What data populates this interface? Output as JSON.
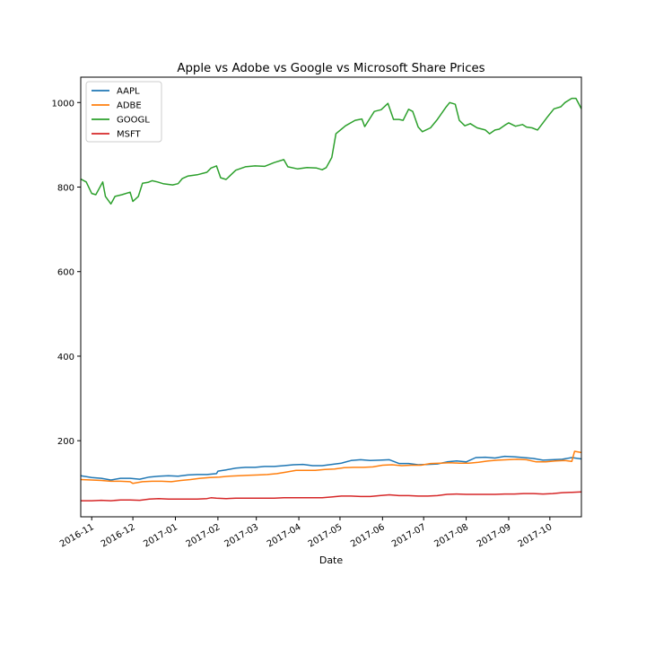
{
  "chart_data": {
    "type": "line",
    "title": "Apple vs Adobe vs Google vs Microsoft Share Prices",
    "xlabel": "Date",
    "ylabel": "",
    "xlim": [
      "2016-10-24",
      "2017-10-24"
    ],
    "ylim": [
      20,
      1060
    ],
    "x_ticks": [
      "2016-11",
      "2016-12",
      "2017-01",
      "2017-02",
      "2017-03",
      "2017-04",
      "2017-05",
      "2017-06",
      "2017-07",
      "2017-08",
      "2017-09",
      "2017-10"
    ],
    "y_ticks": [
      200,
      400,
      600,
      800,
      1000
    ],
    "grid": false,
    "legend": "top-left",
    "series": [
      {
        "name": "AAPL",
        "color": "#1f77b4",
        "points": [
          [
            "2016-10-24",
            117
          ],
          [
            "2016-11-01",
            113
          ],
          [
            "2016-11-08",
            111
          ],
          [
            "2016-11-15",
            107
          ],
          [
            "2016-11-22",
            111
          ],
          [
            "2016-11-29",
            111
          ],
          [
            "2016-12-06",
            109
          ],
          [
            "2016-12-13",
            114
          ],
          [
            "2016-12-20",
            116
          ],
          [
            "2016-12-27",
            117
          ],
          [
            "2017-01-03",
            116
          ],
          [
            "2017-01-10",
            119
          ],
          [
            "2017-01-17",
            120
          ],
          [
            "2017-01-24",
            120
          ],
          [
            "2017-01-31",
            122
          ],
          [
            "2017-02-01",
            128
          ],
          [
            "2017-02-07",
            131
          ],
          [
            "2017-02-14",
            135
          ],
          [
            "2017-02-21",
            137
          ],
          [
            "2017-02-28",
            137
          ],
          [
            "2017-03-07",
            139
          ],
          [
            "2017-03-14",
            139
          ],
          [
            "2017-03-21",
            141
          ],
          [
            "2017-03-28",
            143
          ],
          [
            "2017-04-04",
            144
          ],
          [
            "2017-04-11",
            141
          ],
          [
            "2017-04-18",
            141
          ],
          [
            "2017-04-25",
            144
          ],
          [
            "2017-05-02",
            147
          ],
          [
            "2017-05-09",
            153
          ],
          [
            "2017-05-16",
            155
          ],
          [
            "2017-05-23",
            153
          ],
          [
            "2017-05-30",
            154
          ],
          [
            "2017-06-06",
            155
          ],
          [
            "2017-06-13",
            146
          ],
          [
            "2017-06-20",
            146
          ],
          [
            "2017-06-27",
            143
          ],
          [
            "2017-07-04",
            144
          ],
          [
            "2017-07-11",
            145
          ],
          [
            "2017-07-18",
            150
          ],
          [
            "2017-07-25",
            152
          ],
          [
            "2017-08-01",
            150
          ],
          [
            "2017-08-08",
            160
          ],
          [
            "2017-08-15",
            161
          ],
          [
            "2017-08-22",
            159
          ],
          [
            "2017-08-29",
            163
          ],
          [
            "2017-09-05",
            162
          ],
          [
            "2017-09-12",
            160
          ],
          [
            "2017-09-19",
            158
          ],
          [
            "2017-09-26",
            154
          ],
          [
            "2017-10-03",
            155
          ],
          [
            "2017-10-10",
            156
          ],
          [
            "2017-10-17",
            160
          ],
          [
            "2017-10-24",
            157
          ]
        ]
      },
      {
        "name": "ADBE",
        "color": "#ff7f0e",
        "points": [
          [
            "2016-10-24",
            108
          ],
          [
            "2016-11-01",
            107
          ],
          [
            "2016-11-08",
            106
          ],
          [
            "2016-11-15",
            104
          ],
          [
            "2016-11-22",
            104
          ],
          [
            "2016-11-29",
            103
          ],
          [
            "2016-12-01",
            99
          ],
          [
            "2016-12-08",
            103
          ],
          [
            "2016-12-15",
            104
          ],
          [
            "2016-12-22",
            104
          ],
          [
            "2016-12-29",
            103
          ],
          [
            "2017-01-05",
            106
          ],
          [
            "2017-01-12",
            108
          ],
          [
            "2017-01-19",
            111
          ],
          [
            "2017-01-26",
            113
          ],
          [
            "2017-02-02",
            114
          ],
          [
            "2017-02-09",
            116
          ],
          [
            "2017-02-16",
            117
          ],
          [
            "2017-02-23",
            118
          ],
          [
            "2017-03-02",
            119
          ],
          [
            "2017-03-09",
            120
          ],
          [
            "2017-03-16",
            122
          ],
          [
            "2017-03-23",
            126
          ],
          [
            "2017-03-30",
            130
          ],
          [
            "2017-04-06",
            130
          ],
          [
            "2017-04-13",
            130
          ],
          [
            "2017-04-20",
            132
          ],
          [
            "2017-04-27",
            133
          ],
          [
            "2017-05-04",
            136
          ],
          [
            "2017-05-11",
            137
          ],
          [
            "2017-05-18",
            137
          ],
          [
            "2017-05-25",
            138
          ],
          [
            "2017-06-01",
            142
          ],
          [
            "2017-06-08",
            143
          ],
          [
            "2017-06-15",
            141
          ],
          [
            "2017-06-22",
            142
          ],
          [
            "2017-06-29",
            142
          ],
          [
            "2017-07-06",
            146
          ],
          [
            "2017-07-13",
            147
          ],
          [
            "2017-07-20",
            148
          ],
          [
            "2017-07-27",
            147
          ],
          [
            "2017-08-03",
            147
          ],
          [
            "2017-08-10",
            149
          ],
          [
            "2017-08-17",
            152
          ],
          [
            "2017-08-24",
            154
          ],
          [
            "2017-08-31",
            155
          ],
          [
            "2017-09-07",
            156
          ],
          [
            "2017-09-14",
            155
          ],
          [
            "2017-09-21",
            150
          ],
          [
            "2017-09-28",
            150
          ],
          [
            "2017-10-05",
            152
          ],
          [
            "2017-10-12",
            153
          ],
          [
            "2017-10-17",
            151
          ],
          [
            "2017-10-19",
            175
          ],
          [
            "2017-10-24",
            172
          ]
        ]
      },
      {
        "name": "GOOGL",
        "color": "#2ca02c",
        "points": [
          [
            "2016-10-24",
            819
          ],
          [
            "2016-10-28",
            812
          ],
          [
            "2016-11-01",
            785
          ],
          [
            "2016-11-04",
            782
          ],
          [
            "2016-11-09",
            812
          ],
          [
            "2016-11-11",
            778
          ],
          [
            "2016-11-15",
            760
          ],
          [
            "2016-11-18",
            778
          ],
          [
            "2016-11-23",
            782
          ],
          [
            "2016-11-29",
            788
          ],
          [
            "2016-12-01",
            766
          ],
          [
            "2016-12-05",
            778
          ],
          [
            "2016-12-08",
            809
          ],
          [
            "2016-12-12",
            811
          ],
          [
            "2016-12-15",
            815
          ],
          [
            "2016-12-19",
            812
          ],
          [
            "2016-12-23",
            808
          ],
          [
            "2016-12-30",
            805
          ],
          [
            "2017-01-03",
            808
          ],
          [
            "2017-01-06",
            820
          ],
          [
            "2017-01-10",
            826
          ],
          [
            "2017-01-17",
            829
          ],
          [
            "2017-01-24",
            835
          ],
          [
            "2017-01-27",
            845
          ],
          [
            "2017-01-31",
            850
          ],
          [
            "2017-02-03",
            822
          ],
          [
            "2017-02-07",
            818
          ],
          [
            "2017-02-14",
            840
          ],
          [
            "2017-02-21",
            848
          ],
          [
            "2017-02-28",
            850
          ],
          [
            "2017-03-07",
            849
          ],
          [
            "2017-03-14",
            858
          ],
          [
            "2017-03-21",
            865
          ],
          [
            "2017-03-24",
            848
          ],
          [
            "2017-03-31",
            843
          ],
          [
            "2017-04-07",
            846
          ],
          [
            "2017-04-14",
            845
          ],
          [
            "2017-04-18",
            841
          ],
          [
            "2017-04-21",
            846
          ],
          [
            "2017-04-25",
            870
          ],
          [
            "2017-04-28",
            926
          ],
          [
            "2017-05-05",
            945
          ],
          [
            "2017-05-12",
            958
          ],
          [
            "2017-05-17",
            961
          ],
          [
            "2017-05-19",
            943
          ],
          [
            "2017-05-26",
            979
          ],
          [
            "2017-05-31",
            983
          ],
          [
            "2017-06-05",
            998
          ],
          [
            "2017-06-09",
            960
          ],
          [
            "2017-06-13",
            960
          ],
          [
            "2017-06-16",
            958
          ],
          [
            "2017-06-20",
            984
          ],
          [
            "2017-06-23",
            979
          ],
          [
            "2017-06-27",
            942
          ],
          [
            "2017-06-30",
            931
          ],
          [
            "2017-07-06",
            940
          ],
          [
            "2017-07-11",
            960
          ],
          [
            "2017-07-17",
            988
          ],
          [
            "2017-07-20",
            1000
          ],
          [
            "2017-07-24",
            996
          ],
          [
            "2017-07-27",
            958
          ],
          [
            "2017-07-31",
            945
          ],
          [
            "2017-08-04",
            950
          ],
          [
            "2017-08-09",
            940
          ],
          [
            "2017-08-15",
            935
          ],
          [
            "2017-08-18",
            926
          ],
          [
            "2017-08-22",
            935
          ],
          [
            "2017-08-25",
            937
          ],
          [
            "2017-08-29",
            946
          ],
          [
            "2017-09-01",
            952
          ],
          [
            "2017-09-06",
            944
          ],
          [
            "2017-09-11",
            948
          ],
          [
            "2017-09-14",
            942
          ],
          [
            "2017-09-18",
            940
          ],
          [
            "2017-09-22",
            935
          ],
          [
            "2017-09-26",
            952
          ],
          [
            "2017-09-29",
            965
          ],
          [
            "2017-10-04",
            985
          ],
          [
            "2017-10-09",
            990
          ],
          [
            "2017-10-12",
            1000
          ],
          [
            "2017-10-17",
            1010
          ],
          [
            "2017-10-20",
            1010
          ],
          [
            "2017-10-24",
            985
          ]
        ]
      },
      {
        "name": "MSFT",
        "color": "#d62728",
        "points": [
          [
            "2016-10-24",
            58
          ],
          [
            "2016-11-01",
            58
          ],
          [
            "2016-11-08",
            59
          ],
          [
            "2016-11-15",
            58
          ],
          [
            "2016-11-22",
            60
          ],
          [
            "2016-11-29",
            60
          ],
          [
            "2016-12-06",
            59
          ],
          [
            "2016-12-13",
            62
          ],
          [
            "2016-12-20",
            63
          ],
          [
            "2016-12-27",
            62
          ],
          [
            "2017-01-03",
            62
          ],
          [
            "2017-01-10",
            62
          ],
          [
            "2017-01-17",
            62
          ],
          [
            "2017-01-24",
            63
          ],
          [
            "2017-01-27",
            65
          ],
          [
            "2017-01-31",
            64
          ],
          [
            "2017-02-07",
            63
          ],
          [
            "2017-02-14",
            64
          ],
          [
            "2017-02-21",
            64
          ],
          [
            "2017-02-28",
            64
          ],
          [
            "2017-03-07",
            64
          ],
          [
            "2017-03-14",
            64
          ],
          [
            "2017-03-21",
            65
          ],
          [
            "2017-03-28",
            65
          ],
          [
            "2017-04-04",
            65
          ],
          [
            "2017-04-11",
            65
          ],
          [
            "2017-04-18",
            65
          ],
          [
            "2017-04-25",
            67
          ],
          [
            "2017-05-02",
            69
          ],
          [
            "2017-05-09",
            69
          ],
          [
            "2017-05-16",
            68
          ],
          [
            "2017-05-23",
            68
          ],
          [
            "2017-05-30",
            70
          ],
          [
            "2017-06-06",
            72
          ],
          [
            "2017-06-13",
            70
          ],
          [
            "2017-06-20",
            70
          ],
          [
            "2017-06-27",
            69
          ],
          [
            "2017-07-04",
            69
          ],
          [
            "2017-07-11",
            70
          ],
          [
            "2017-07-18",
            73
          ],
          [
            "2017-07-25",
            74
          ],
          [
            "2017-08-01",
            73
          ],
          [
            "2017-08-08",
            73
          ],
          [
            "2017-08-15",
            73
          ],
          [
            "2017-08-22",
            73
          ],
          [
            "2017-08-29",
            74
          ],
          [
            "2017-09-05",
            74
          ],
          [
            "2017-09-12",
            75
          ],
          [
            "2017-09-19",
            75
          ],
          [
            "2017-09-26",
            74
          ],
          [
            "2017-10-03",
            75
          ],
          [
            "2017-10-10",
            77
          ],
          [
            "2017-10-17",
            78
          ],
          [
            "2017-10-24",
            79
          ]
        ]
      }
    ]
  }
}
